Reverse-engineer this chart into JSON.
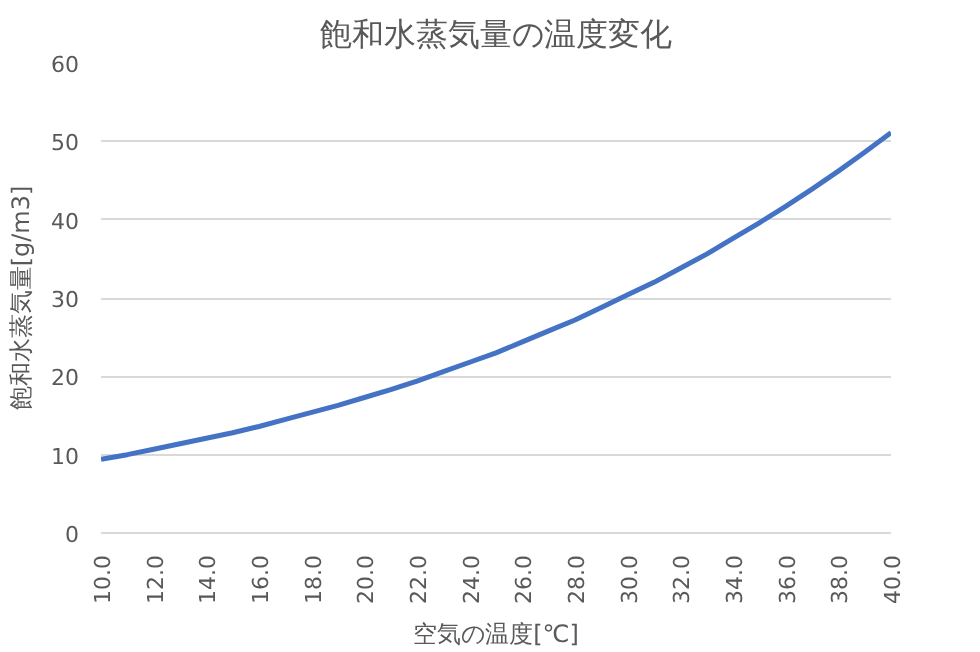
{
  "chart_data": {
    "type": "line",
    "title": "飽和水蒸気量の温度変化",
    "xlabel": "空気の温度[℃]",
    "ylabel": "飽和水蒸気量[g/m3]",
    "x": [
      10,
      11,
      12,
      13,
      14,
      15,
      16,
      17,
      18,
      19,
      20,
      21,
      22,
      23,
      24,
      25,
      26,
      27,
      28,
      29,
      30,
      31,
      32,
      33,
      34,
      35,
      36,
      37,
      38,
      39,
      40
    ],
    "series": [
      {
        "color": "#4472c4",
        "values": [
          9.4,
          10.0,
          10.7,
          11.4,
          12.1,
          12.8,
          13.6,
          14.5,
          15.4,
          16.3,
          17.3,
          18.3,
          19.4,
          20.6,
          21.8,
          23.0,
          24.4,
          25.8,
          27.2,
          28.8,
          30.4,
          32.0,
          33.8,
          35.6,
          37.6,
          39.6,
          41.7,
          43.9,
          46.2,
          48.6,
          51.1
        ]
      }
    ],
    "xlim": [
      10,
      40
    ],
    "xticks": [
      {
        "value": 10,
        "label": "10.0"
      },
      {
        "value": 12,
        "label": "12.0"
      },
      {
        "value": 14,
        "label": "14.0"
      },
      {
        "value": 16,
        "label": "16.0"
      },
      {
        "value": 18,
        "label": "18.0"
      },
      {
        "value": 20,
        "label": "20.0"
      },
      {
        "value": 22,
        "label": "22.0"
      },
      {
        "value": 24,
        "label": "24.0"
      },
      {
        "value": 26,
        "label": "26.0"
      },
      {
        "value": 28,
        "label": "28.0"
      },
      {
        "value": 30,
        "label": "30.0"
      },
      {
        "value": 32,
        "label": "32.0"
      },
      {
        "value": 34,
        "label": "34.0"
      },
      {
        "value": 36,
        "label": "36.0"
      },
      {
        "value": 38,
        "label": "38.0"
      },
      {
        "value": 40,
        "label": "40.0"
      }
    ],
    "ylim": [
      0,
      60
    ],
    "yticks": [
      0,
      10,
      20,
      30,
      40,
      50,
      60
    ],
    "grid": "y",
    "marker": "none",
    "line_style": "solid"
  }
}
